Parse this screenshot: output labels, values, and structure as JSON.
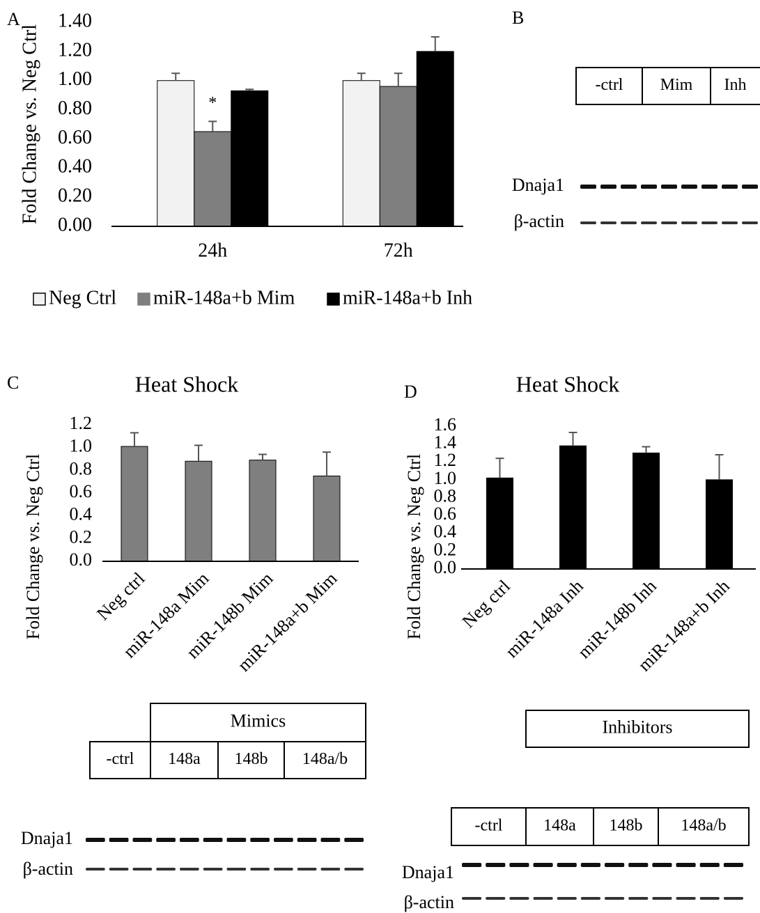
{
  "chart_data": [
    {
      "type": "bar",
      "panel_label": "A",
      "y_label": "Fold Change vs. Neg Ctrl",
      "annotation": "*",
      "categories": [
        "24h",
        "72h"
      ],
      "series": [
        {
          "name": "Neg Ctrl",
          "color": "#f2f2f2",
          "values": [
            1.0,
            1.0
          ],
          "errors": [
            0.05,
            0.05
          ]
        },
        {
          "name": "miR-148a+b Mim",
          "color": "#7f7f7f",
          "values": [
            0.65,
            0.96
          ],
          "errors": [
            0.07,
            0.09
          ]
        },
        {
          "name": "miR-148a+b Inh",
          "color": "#000000",
          "values": [
            0.93,
            1.2
          ],
          "errors": [
            0.01,
            0.1
          ]
        }
      ],
      "ylim": [
        0,
        1.4
      ],
      "yticks": [
        {
          "value": 0,
          "label": "0.00"
        },
        {
          "value": 0.2,
          "label": "0.20"
        },
        {
          "value": 0.4,
          "label": "0.40"
        },
        {
          "value": 0.6,
          "label": "0.60"
        },
        {
          "value": 0.8,
          "label": "0.80"
        },
        {
          "value": 1.0,
          "label": "1.00"
        },
        {
          "value": 1.2,
          "label": "1.20"
        },
        {
          "value": 1.4,
          "label": "1.40"
        }
      ]
    },
    {
      "type": "bar",
      "panel_label": "C",
      "title": "Heat Shock",
      "y_label": "Fold Change vs. Neg Ctrl",
      "categories": [
        "Neg ctrl",
        "miR-148a Mim",
        "miR-148b Mim",
        "miR-148a+b Mim"
      ],
      "series": [
        {
          "color": "#7f7f7f",
          "values": [
            1.01,
            0.88,
            0.89,
            0.75
          ],
          "errors": [
            0.12,
            0.14,
            0.05,
            0.21
          ]
        }
      ],
      "ylim": [
        0,
        1.2
      ],
      "yticks": [
        {
          "value": 0,
          "label": "0.0"
        },
        0.2,
        0.4,
        0.6,
        0.8,
        {
          "value": 1.0,
          "label": "1.0"
        },
        1.2
      ]
    },
    {
      "type": "bar",
      "panel_label": "D",
      "title": "Heat Shock",
      "y_label": "Fold Change vs. Neg Ctrl",
      "categories": [
        "Neg ctrl",
        "miR-148a Inh",
        "miR-148b Inh",
        "miR-148a+b Inh"
      ],
      "series": [
        {
          "color": "#000000",
          "values": [
            1.02,
            1.38,
            1.3,
            1.0
          ],
          "errors": [
            0.22,
            0.15,
            0.07,
            0.28
          ]
        }
      ],
      "ylim": [
        0,
        1.6
      ],
      "yticks": [
        {
          "value": 0,
          "label": "0.0"
        },
        0.2,
        0.4,
        0.6,
        0.8,
        {
          "value": 1.0,
          "label": "1.0"
        },
        1.2,
        1.4,
        1.6
      ]
    }
  ],
  "blots": [
    {
      "panel_label": "B",
      "groups": [
        "-ctrl",
        "Mim",
        "Inh"
      ],
      "rows": [
        "Dnaja1",
        "β-actin"
      ]
    },
    {
      "header": "Mimics",
      "groups": [
        "-ctrl",
        "148a",
        "148b",
        "148a/b"
      ],
      "rows": [
        "Dnaja1",
        "β-actin"
      ]
    },
    {
      "header": "Inhibitors",
      "groups": [
        "-ctrl",
        "148a",
        "148b",
        "148a/b"
      ],
      "rows": [
        "Dnaja1",
        "β-actin"
      ]
    }
  ]
}
